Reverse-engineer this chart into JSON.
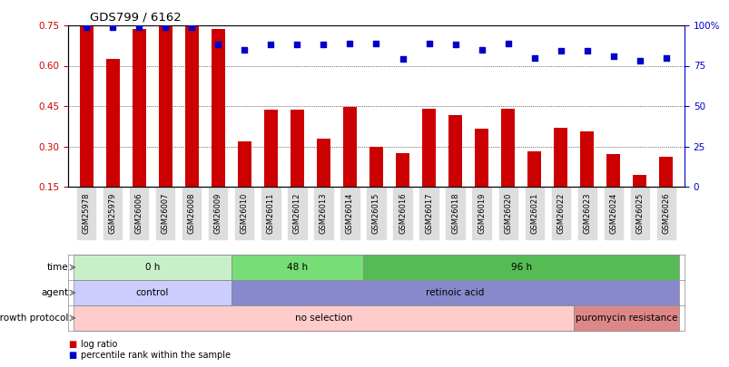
{
  "title": "GDS799 / 6162",
  "samples": [
    "GSM25978",
    "GSM25979",
    "GSM26006",
    "GSM26007",
    "GSM26008",
    "GSM26009",
    "GSM26010",
    "GSM26011",
    "GSM26012",
    "GSM26013",
    "GSM26014",
    "GSM26015",
    "GSM26016",
    "GSM26017",
    "GSM26018",
    "GSM26019",
    "GSM26020",
    "GSM26021",
    "GSM26022",
    "GSM26023",
    "GSM26024",
    "GSM26025",
    "GSM26026"
  ],
  "log_ratio": [
    0.748,
    0.625,
    0.735,
    0.748,
    0.748,
    0.735,
    0.32,
    0.435,
    0.435,
    0.33,
    0.445,
    0.3,
    0.275,
    0.44,
    0.415,
    0.365,
    0.44,
    0.28,
    0.37,
    0.355,
    0.27,
    0.195,
    0.26
  ],
  "percentile": [
    99,
    99,
    99,
    99,
    99,
    88,
    85,
    88,
    88,
    88,
    89,
    89,
    79,
    89,
    88,
    85,
    89,
    80,
    84,
    84,
    81,
    78,
    80
  ],
  "bar_color": "#cc0000",
  "dot_color": "#0000cc",
  "ymin": 0.15,
  "ymax": 0.75,
  "y2min": 0,
  "y2max": 100,
  "yticks": [
    0.15,
    0.3,
    0.45,
    0.6,
    0.75
  ],
  "y2ticks": [
    0,
    25,
    50,
    75,
    100
  ],
  "y2ticklabels": [
    "0",
    "25",
    "50",
    "75",
    "100%"
  ],
  "grid_values": [
    0.3,
    0.45,
    0.6,
    0.75
  ],
  "time_groups": [
    {
      "label": "0 h",
      "start": 0,
      "end": 5,
      "color": "#c8f0c8"
    },
    {
      "label": "48 h",
      "start": 6,
      "end": 10,
      "color": "#77dd77"
    },
    {
      "label": "96 h",
      "start": 11,
      "end": 22,
      "color": "#55bb55"
    }
  ],
  "agent_groups": [
    {
      "label": "control",
      "start": 0,
      "end": 5,
      "color": "#ccccff"
    },
    {
      "label": "retinoic acid",
      "start": 6,
      "end": 22,
      "color": "#8888cc"
    }
  ],
  "growth_groups": [
    {
      "label": "no selection",
      "start": 0,
      "end": 18,
      "color": "#ffcccc"
    },
    {
      "label": "puromycin resistance",
      "start": 19,
      "end": 22,
      "color": "#dd8888"
    }
  ],
  "legend_items": [
    {
      "label": "log ratio",
      "color": "#cc0000"
    },
    {
      "label": "percentile rank within the sample",
      "color": "#0000cc"
    }
  ],
  "background_color": "#ffffff"
}
